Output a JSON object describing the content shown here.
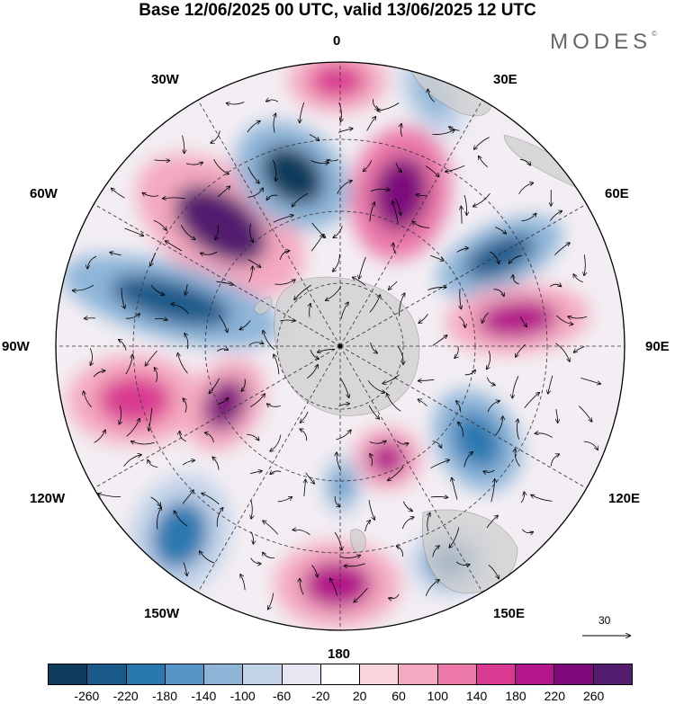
{
  "title": "Base 12/06/2025 00 UTC, valid 13/06/2025 12 UTC",
  "brand": "MODES",
  "brand_mark": "©",
  "longitude_labels": [
    "0",
    "30E",
    "60E",
    "90E",
    "120E",
    "150E",
    "180",
    "150W",
    "120W",
    "90W",
    "60W",
    "30W"
  ],
  "vector_reference": "30",
  "colorbar": {
    "ticks": [
      "-260",
      "-220",
      "-180",
      "-140",
      "-100",
      "-60",
      "-20",
      "20",
      "60",
      "100",
      "140",
      "180",
      "220",
      "260"
    ],
    "colors": [
      "#0d3b5c",
      "#1a5a8a",
      "#2a78b0",
      "#5596c6",
      "#8eb5d8",
      "#c2d3e8",
      "#e6e7f2",
      "#ffffff",
      "#f9d6dc",
      "#f4a9c0",
      "#eb78a8",
      "#d93a91",
      "#b3168a",
      "#7e0a7c",
      "#531c6e"
    ]
  },
  "colors": {
    "land": "#cfcfcf",
    "antarctica": "#d6d6d6",
    "negative_strong": "#1d4e78",
    "positive_strong": "#6a1a7a"
  }
}
